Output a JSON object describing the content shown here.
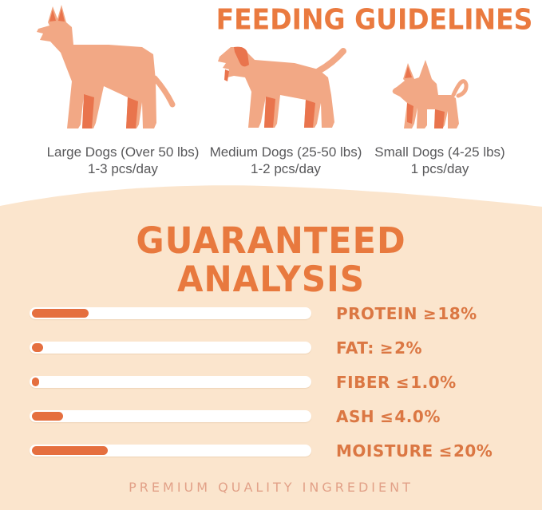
{
  "colors": {
    "title_orange": "#EA7A3F",
    "label_orange": "#DB7743",
    "bar_fill_orange": "#E56F3F",
    "bar_track_white": "#FFFFFF",
    "peach_background": "#FBE5CD",
    "dog_body": "#F2A885",
    "dog_accent": "#E9744D",
    "caption_gray": "#58585A",
    "footer_pink": "#E2A188"
  },
  "feeding": {
    "title": "FEEDING GUIDELINES",
    "dogs": [
      {
        "icon": "large-dog-icon",
        "label": "Large Dogs (Over 50 lbs)",
        "serving": "1-3 pcs/day"
      },
      {
        "icon": "medium-dog-icon",
        "label": "Medium Dogs (25-50 lbs)",
        "serving": "1-2 pcs/day"
      },
      {
        "icon": "small-dog-icon",
        "label": "Small Dogs (4-25 lbs)",
        "serving": "1 pcs/day"
      }
    ]
  },
  "analysis": {
    "title_line1": "GUARANTEED",
    "title_line2": "ANALYSIS",
    "rows": [
      {
        "name": "PROTEIN",
        "comparator": "≥",
        "value": "18%",
        "fill_pct": 20
      },
      {
        "name": "FAT:",
        "comparator": "≥",
        "value": "2%",
        "fill_pct": 4
      },
      {
        "name": "FIBER",
        "comparator": "≤",
        "value": "1.0%",
        "fill_pct": 2.5
      },
      {
        "name": "ASH",
        "comparator": "≤",
        "value": "4.0%",
        "fill_pct": 11
      },
      {
        "name": "MOISTURE",
        "comparator": "≤",
        "value": "20%",
        "fill_pct": 27
      }
    ]
  },
  "footer": {
    "text": "PREMIUM QUALITY INGREDIENT"
  },
  "chart_data": {
    "type": "bar",
    "title": "GUARANTEED ANALYSIS",
    "categories": [
      "PROTEIN",
      "FAT",
      "FIBER",
      "ASH",
      "MOISTURE"
    ],
    "values": [
      18,
      2,
      1.0,
      4.0,
      20
    ],
    "comparators": [
      "≥",
      "≥",
      "≤",
      "≤",
      "≤"
    ],
    "unit": "%",
    "orientation": "horizontal",
    "bar_fill_percent_of_track": [
      20,
      4,
      2.5,
      11,
      27
    ],
    "legend": "none",
    "grid": false
  }
}
